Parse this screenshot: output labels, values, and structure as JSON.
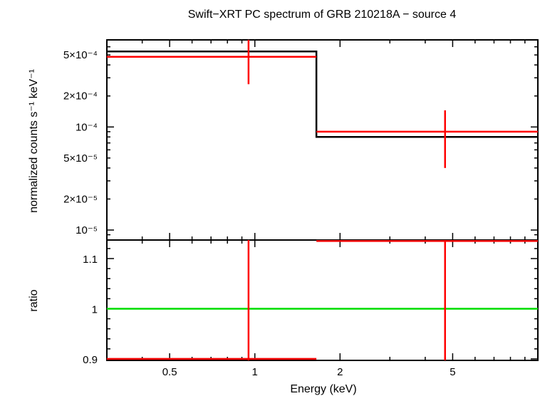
{
  "chart_data": [
    {
      "type": "line",
      "title": "Swift−XRT PC spectrum of GRB 210218A − source 4",
      "ylabel": "normalized counts s⁻¹ keV⁻¹",
      "xscale": "log",
      "yscale": "log",
      "xlim": [
        0.3,
        10
      ],
      "ylim": [
        8e-06,
        0.0007
      ],
      "yticks": [
        {
          "value": 1e-05,
          "label": "10⁻⁵"
        },
        {
          "value": 2e-05,
          "label": "2×10⁻⁵"
        },
        {
          "value": 5e-05,
          "label": "5×10⁻⁵"
        },
        {
          "value": 0.0001,
          "label": "10⁻⁴"
        },
        {
          "value": 0.0002,
          "label": "2×10⁻⁴"
        },
        {
          "value": 0.0005,
          "label": "5×10⁻⁴"
        }
      ],
      "series": [
        {
          "role": "data",
          "color": "#ff0000",
          "points": [
            {
              "x": 0.95,
              "xlo": 0.3,
              "xhi": 1.65,
              "y": 0.00048,
              "ylo": 0.00026,
              "yhi": 0.0007
            },
            {
              "x": 4.7,
              "xlo": 1.65,
              "xhi": 10,
              "y": 9e-05,
              "ylo": 4e-05,
              "yhi": 0.000145
            }
          ]
        },
        {
          "role": "model",
          "color": "#000000",
          "steps": [
            {
              "xlo": 0.3,
              "xhi": 1.65,
              "y": 0.00054
            },
            {
              "xlo": 1.65,
              "xhi": 10,
              "y": 8e-05
            }
          ]
        }
      ]
    },
    {
      "type": "line",
      "xlabel": "Energy (keV)",
      "ylabel": "ratio",
      "xscale": "log",
      "xlim": [
        0.3,
        10
      ],
      "ylim": [
        0.897,
        1.137
      ],
      "xticks": [
        {
          "value": 0.5,
          "label": "0.5"
        },
        {
          "value": 1,
          "label": "1"
        },
        {
          "value": 2,
          "label": "2"
        },
        {
          "value": 5,
          "label": "5"
        }
      ],
      "yticks": [
        {
          "value": 0.9,
          "label": "0.9"
        },
        {
          "value": 1.0,
          "label": "1"
        },
        {
          "value": 1.1,
          "label": "1.1"
        }
      ],
      "reference_line": {
        "y": 1,
        "color": "#00dd00"
      },
      "series": [
        {
          "role": "ratio",
          "color": "#ff0000",
          "points": [
            {
              "x": 0.95,
              "xlo": 0.3,
              "xhi": 1.65,
              "y": 0.9
            },
            {
              "x": 4.7,
              "xlo": 1.65,
              "xhi": 10,
              "y": 1.135
            }
          ]
        }
      ]
    }
  ]
}
